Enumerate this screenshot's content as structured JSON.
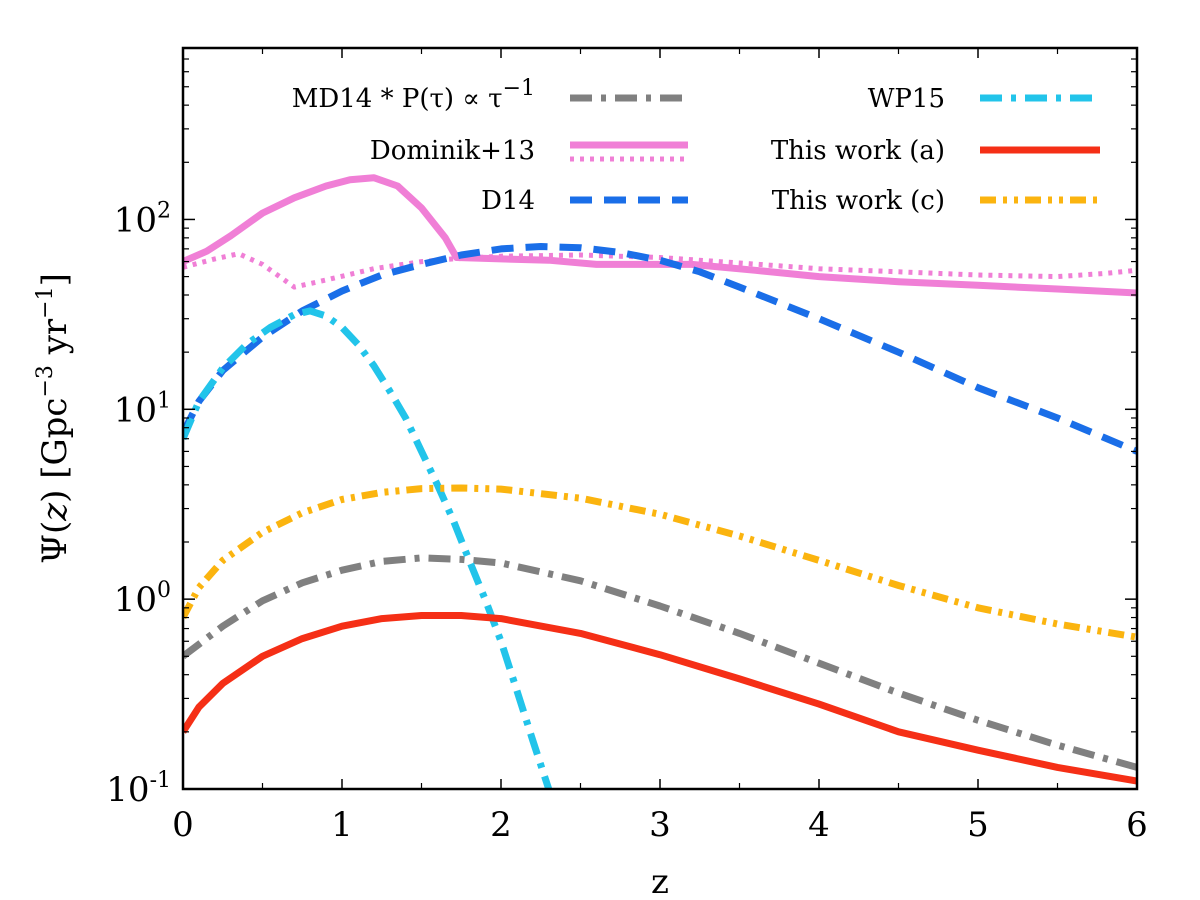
{
  "chart_data": {
    "type": "line",
    "title": "",
    "xlabel": "z",
    "ylabel": "Ψ(z) [Gpc⁻³ yr⁻¹]",
    "ylabel_parts": {
      "psi": "Ψ(",
      "z": "z",
      "close": ") [Gpc",
      "exp1": "−3",
      "yr": " yr",
      "exp2": "−1",
      "end": "]"
    },
    "scale": {
      "y": "log"
    },
    "xlim": [
      0,
      6
    ],
    "ylim": [
      0.1,
      800
    ],
    "x_ticks": [
      {
        "v": 0,
        "label": "0"
      },
      {
        "v": 1,
        "label": "1"
      },
      {
        "v": 2,
        "label": "2"
      },
      {
        "v": 3,
        "label": "3"
      },
      {
        "v": 4,
        "label": "4"
      },
      {
        "v": 5,
        "label": "5"
      },
      {
        "v": 6,
        "label": "6"
      }
    ],
    "y_ticks": [
      {
        "v": 0.1,
        "base": "10",
        "exp": "-1"
      },
      {
        "v": 1,
        "base": "10",
        "exp": "0"
      },
      {
        "v": 10,
        "base": "10",
        "exp": "1"
      },
      {
        "v": 100,
        "base": "10",
        "exp": "2"
      }
    ],
    "series": [
      {
        "name": "MD14 * P(τ) ∝ τ^-1",
        "legend_label": "MD14 * P(τ) ∝ τ",
        "legend_exp": "−1",
        "color": "#808080",
        "dash": "dashdot",
        "x": [
          0,
          0.25,
          0.5,
          0.75,
          1.0,
          1.25,
          1.5,
          1.75,
          2.0,
          2.5,
          3.0,
          3.5,
          4.0,
          4.5,
          5.0,
          5.5,
          6.0
        ],
        "y": [
          0.5,
          0.72,
          0.98,
          1.22,
          1.42,
          1.58,
          1.65,
          1.62,
          1.55,
          1.25,
          0.92,
          0.66,
          0.46,
          0.32,
          0.23,
          0.17,
          0.13
        ]
      },
      {
        "name": "Dominik+13 (solid)",
        "legend_label": "Dominik+13",
        "color": "#f07fd6",
        "dash": "solid",
        "x": [
          0,
          0.15,
          0.3,
          0.5,
          0.7,
          0.9,
          1.05,
          1.2,
          1.35,
          1.5,
          1.65,
          1.72,
          2.0,
          2.3,
          2.6,
          2.9,
          3.2,
          3.6,
          4.0,
          4.5,
          5.0,
          5.5,
          6.0
        ],
        "y": [
          60,
          68,
          82,
          108,
          130,
          150,
          162,
          166,
          150,
          115,
          80,
          63,
          62,
          61,
          58,
          58,
          58,
          54,
          50,
          47,
          45,
          43,
          41
        ]
      },
      {
        "name": "Dominik+13 (dotted)",
        "legend_label": "",
        "color": "#f07fd6",
        "dash": "dotted",
        "x": [
          0,
          0.2,
          0.35,
          0.5,
          0.7,
          0.9,
          1.2,
          1.5,
          1.7,
          2.0,
          2.5,
          3.0,
          3.5,
          4.0,
          4.5,
          5.0,
          5.5,
          5.8,
          6.0
        ],
        "y": [
          56,
          62,
          66,
          58,
          44,
          48,
          55,
          60,
          62,
          64,
          65,
          63,
          59,
          55,
          53,
          51,
          50,
          52,
          54
        ]
      },
      {
        "name": "D14",
        "legend_label": "D14",
        "color": "#1a6ee8",
        "dash": "dashed",
        "x": [
          0,
          0.1,
          0.25,
          0.5,
          0.75,
          1.0,
          1.25,
          1.5,
          1.75,
          2.0,
          2.25,
          2.5,
          2.75,
          3.0,
          3.25,
          3.5,
          4.0,
          4.5,
          5.0,
          5.5,
          6.0
        ],
        "y": [
          7.5,
          11,
          16,
          24,
          33,
          42,
          51,
          58,
          65,
          70,
          72,
          71,
          67,
          61,
          53,
          44,
          30,
          20,
          13,
          9,
          6
        ]
      },
      {
        "name": "WP15",
        "legend_label": "WP15",
        "color": "#22c4ea",
        "dash": "dashdot",
        "x": [
          0,
          0.1,
          0.25,
          0.4,
          0.55,
          0.7,
          0.8,
          0.9,
          1.0,
          1.1,
          1.2,
          1.3,
          1.4,
          1.5,
          1.6,
          1.7,
          1.8,
          1.9,
          2.0,
          2.1,
          2.2,
          2.3
        ],
        "y": [
          7,
          11,
          16.5,
          22,
          27,
          31.5,
          33,
          31,
          27,
          22,
          17,
          12.5,
          9,
          6,
          4,
          2.6,
          1.6,
          1.0,
          0.6,
          0.33,
          0.18,
          0.1
        ]
      },
      {
        "name": "This work (a)",
        "legend_label": "This work (a)",
        "color": "#f52f16",
        "dash": "solid",
        "x": [
          0,
          0.1,
          0.25,
          0.5,
          0.75,
          1.0,
          1.25,
          1.5,
          1.75,
          2.0,
          2.5,
          3.0,
          3.5,
          4.0,
          4.5,
          5.0,
          5.5,
          6.0
        ],
        "y": [
          0.2,
          0.27,
          0.36,
          0.5,
          0.62,
          0.72,
          0.79,
          0.82,
          0.82,
          0.79,
          0.66,
          0.51,
          0.38,
          0.28,
          0.2,
          0.16,
          0.13,
          0.11
        ]
      },
      {
        "name": "This work (c)",
        "legend_label": "This work (c)",
        "color": "#fbb40f",
        "dash": "dashdotdot",
        "x": [
          0,
          0.1,
          0.25,
          0.5,
          0.75,
          1.0,
          1.25,
          1.5,
          1.75,
          2.0,
          2.5,
          3.0,
          3.5,
          4.0,
          4.5,
          5.0,
          5.5,
          6.0
        ],
        "y": [
          0.8,
          1.15,
          1.6,
          2.25,
          2.85,
          3.35,
          3.65,
          3.82,
          3.85,
          3.8,
          3.4,
          2.8,
          2.15,
          1.6,
          1.18,
          0.9,
          0.74,
          0.63
        ]
      }
    ],
    "legend": {
      "left": [
        {
          "text": "MD14 * P(τ) ∝ τ",
          "exp": "−1",
          "series": [
            0
          ]
        },
        {
          "text": "Dominik+13",
          "series": [
            1,
            2
          ]
        },
        {
          "text": "D14",
          "series": [
            3
          ]
        }
      ],
      "right": [
        {
          "text": "WP15",
          "series": [
            4
          ]
        },
        {
          "text": "This work (a)",
          "series": [
            5
          ]
        },
        {
          "text": "This work (c)",
          "series": [
            6
          ]
        }
      ]
    }
  }
}
